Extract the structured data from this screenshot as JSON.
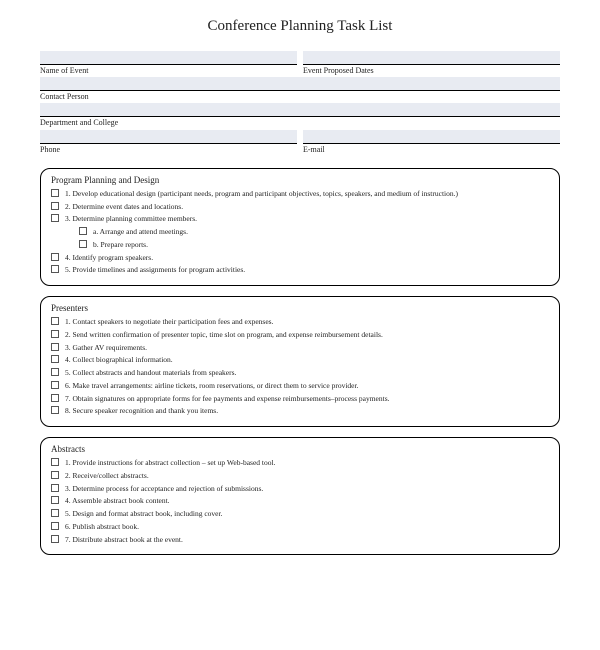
{
  "title": "Conference Planning Task List",
  "fields": {
    "name_of_event": "Name of Event",
    "event_proposed_dates": "Event Proposed Dates",
    "contact_person": "Contact Person",
    "department_college": "Department and College",
    "phone": "Phone",
    "email": "E-mail"
  },
  "sections": [
    {
      "title": "Program Planning and Design",
      "items": [
        {
          "n": "1.",
          "t": "Develop educational design (participant needs, program and participant objectives, topics, speakers, and medium of instruction.)",
          "sub": false
        },
        {
          "n": "2.",
          "t": "Determine event dates and locations.",
          "sub": false
        },
        {
          "n": "3.",
          "t": "Determine planning committee members.",
          "sub": false
        },
        {
          "n": "a.",
          "t": "Arrange and attend meetings.",
          "sub": true
        },
        {
          "n": "b.",
          "t": "Prepare reports.",
          "sub": true
        },
        {
          "n": "4.",
          "t": "Identify program speakers.",
          "sub": false
        },
        {
          "n": "5.",
          "t": "Provide timelines and assignments for program activities.",
          "sub": false
        }
      ]
    },
    {
      "title": "Presenters",
      "items": [
        {
          "n": "1.",
          "t": "Contact speakers to negotiate their participation fees and expenses.",
          "sub": false
        },
        {
          "n": "2.",
          "t": "Send written confirmation of presenter topic, time slot on program, and expense reimbursement details.",
          "sub": false
        },
        {
          "n": "3.",
          "t": "Gather AV requirements.",
          "sub": false
        },
        {
          "n": "4.",
          "t": "Collect biographical information.",
          "sub": false
        },
        {
          "n": "5.",
          "t": "Collect abstracts and handout materials from speakers.",
          "sub": false
        },
        {
          "n": "6.",
          "t": "Make travel arrangements: airline tickets, room reservations, or direct them to service provider.",
          "sub": false
        },
        {
          "n": "7.",
          "t": "Obtain signatures on appropriate forms for fee payments and expense reimbursements–process payments.",
          "sub": false
        },
        {
          "n": "8.",
          "t": "Secure speaker recognition and thank you items.",
          "sub": false
        }
      ]
    },
    {
      "title": "Abstracts",
      "items": [
        {
          "n": "1.",
          "t": "Provide instructions for abstract collection – set up Web-based tool.",
          "sub": false
        },
        {
          "n": "2.",
          "t": "Receive/collect abstracts.",
          "sub": false
        },
        {
          "n": "3.",
          "t": "Determine process for acceptance and rejection of submissions.",
          "sub": false
        },
        {
          "n": "4.",
          "t": "Assemble abstract book content.",
          "sub": false
        },
        {
          "n": "5.",
          "t": "Design and format abstract book, including cover.",
          "sub": false
        },
        {
          "n": "6.",
          "t": "Publish abstract book.",
          "sub": false
        },
        {
          "n": "7.",
          "t": "Distribute abstract book at the event.",
          "sub": false
        }
      ]
    }
  ],
  "colors": {
    "input_bg": "#e8ebf2",
    "border": "#000000",
    "text": "#222222"
  }
}
